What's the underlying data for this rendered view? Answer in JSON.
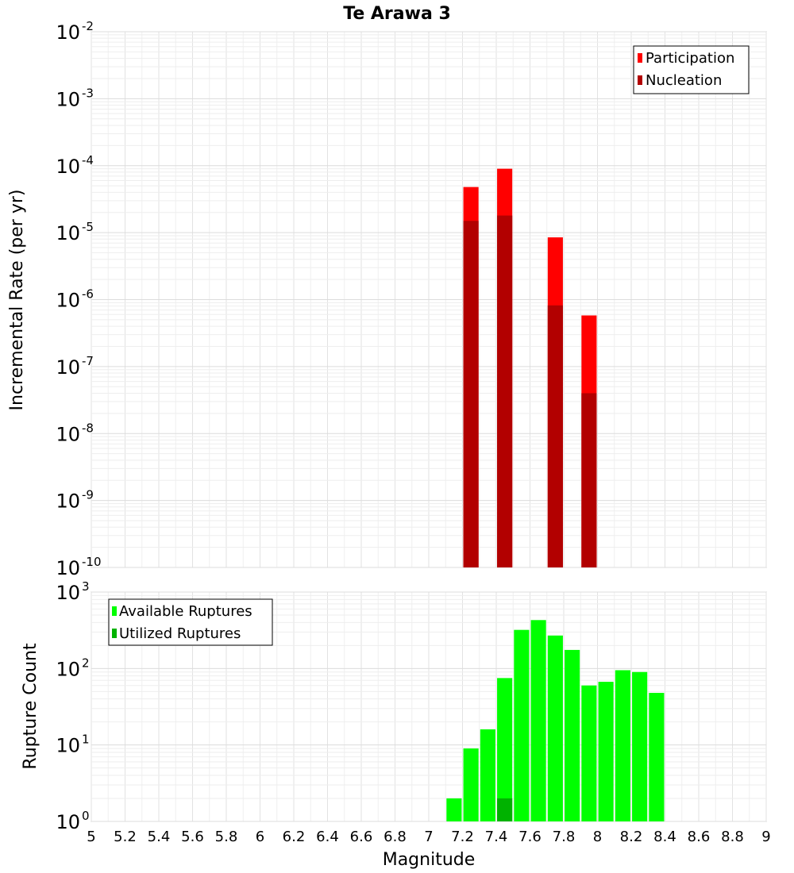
{
  "title": "Te Arawa 3",
  "chart_data": [
    {
      "type": "bar",
      "ylabel": "Incremental Rate (per yr)",
      "xlim": [
        5,
        9
      ],
      "ylim_exp": [
        -10,
        -2
      ],
      "yscale": "log",
      "grid": true,
      "legend_position": "top-right",
      "legend": [
        "Participation",
        "Nucleation"
      ],
      "series": [
        {
          "name": "Participation",
          "color": "#ff0000",
          "x": [
            7.25,
            7.45,
            7.75,
            7.95
          ],
          "values": [
            4.8e-05,
            9e-05,
            8.5e-06,
            5.8e-07
          ]
        },
        {
          "name": "Nucleation",
          "color": "#b20000",
          "x": [
            7.25,
            7.45,
            7.75,
            7.95
          ],
          "values": [
            1.5e-05,
            1.8e-05,
            8.2e-07,
            4e-08
          ]
        }
      ]
    },
    {
      "type": "bar",
      "xlabel": "Magnitude",
      "ylabel": "Rupture Count",
      "xlim": [
        5,
        9
      ],
      "ylim_exp": [
        0,
        3
      ],
      "yscale": "log",
      "grid": true,
      "legend_position": "top-left",
      "legend": [
        "Available Ruptures",
        "Utilized Ruptures"
      ],
      "series": [
        {
          "name": "Available Ruptures",
          "color": "#00ff00",
          "x": [
            6.75,
            7.05,
            7.15,
            7.25,
            7.35,
            7.45,
            7.55,
            7.65,
            7.75,
            7.85,
            7.95,
            8.05,
            8.15,
            8.25,
            8.35
          ],
          "values": [
            1,
            1,
            2,
            9,
            16,
            75,
            320,
            430,
            270,
            175,
            60,
            67,
            95,
            90,
            48
          ]
        },
        {
          "name": "Utilized Ruptures",
          "color": "#00b200",
          "x": [
            7.25,
            7.45,
            7.75,
            7.95
          ],
          "values": [
            1,
            2,
            1,
            1
          ]
        }
      ],
      "xticks": [
        "5",
        "5.2",
        "5.4",
        "5.6",
        "5.8",
        "6",
        "6.2",
        "6.4",
        "6.6",
        "6.8",
        "7",
        "7.2",
        "7.4",
        "7.6",
        "7.8",
        "8",
        "8.2",
        "8.4",
        "8.6",
        "8.8",
        "9"
      ]
    }
  ]
}
